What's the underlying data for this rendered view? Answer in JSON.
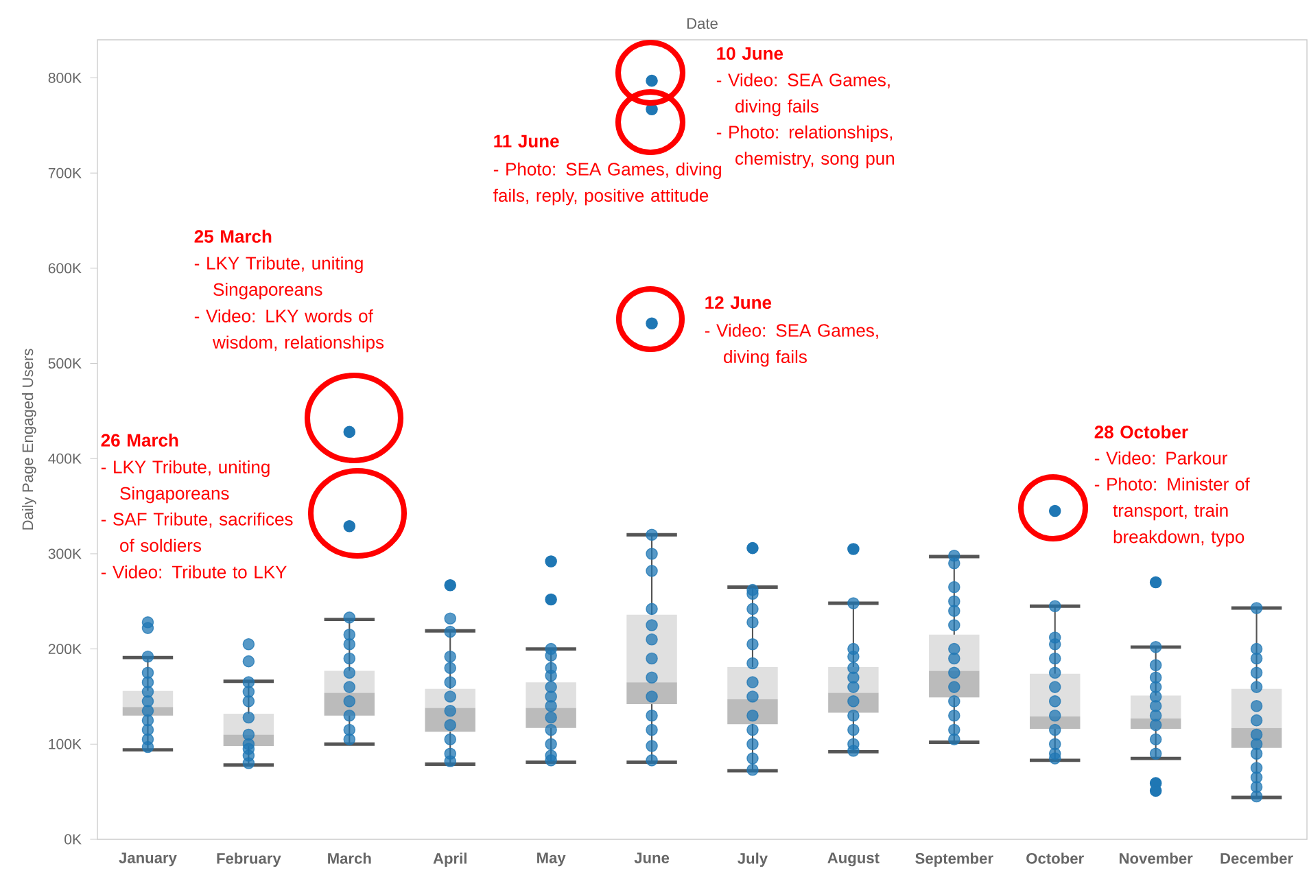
{
  "chart_data": {
    "type": "box",
    "xlabel": "Date",
    "ylabel": "Daily Page Engaged Users",
    "categories": [
      "January",
      "February",
      "March",
      "April",
      "May",
      "June",
      "July",
      "August",
      "September",
      "October",
      "November",
      "December"
    ],
    "ylim": [
      0,
      840
    ],
    "yticks": [
      {
        "value": 0,
        "label": "0K"
      },
      {
        "value": 100,
        "label": "100K"
      },
      {
        "value": 200,
        "label": "200K"
      },
      {
        "value": 300,
        "label": "300K"
      },
      {
        "value": 400,
        "label": "400K"
      },
      {
        "value": 500,
        "label": "500K"
      },
      {
        "value": 600,
        "label": "600K"
      },
      {
        "value": 700,
        "label": "700K"
      },
      {
        "value": 800,
        "label": "800K"
      }
    ],
    "boxes": [
      {
        "low": 94,
        "q1": 130,
        "median": 139,
        "q3": 156,
        "high": 191
      },
      {
        "low": 78,
        "q1": 98,
        "median": 110,
        "q3": 132,
        "high": 166
      },
      {
        "low": 100,
        "q1": 130,
        "median": 154,
        "q3": 177,
        "high": 231,
        "outliers": [
          428,
          329
        ]
      },
      {
        "low": 79,
        "q1": 113,
        "median": 138,
        "q3": 158,
        "high": 219,
        "outliers": [
          267
        ]
      },
      {
        "low": 81,
        "q1": 117,
        "median": 138,
        "q3": 165,
        "high": 200,
        "outliers": [
          292,
          252
        ]
      },
      {
        "low": 81,
        "q1": 142,
        "median": 165,
        "q3": 236,
        "high": 320,
        "outliers": [
          797,
          767,
          542
        ]
      },
      {
        "low": 72,
        "q1": 121,
        "median": 147,
        "q3": 181,
        "high": 265,
        "outliers": [
          306
        ]
      },
      {
        "low": 92,
        "q1": 133,
        "median": 154,
        "q3": 181,
        "high": 248,
        "outliers": [
          305
        ]
      },
      {
        "low": 102,
        "q1": 149,
        "median": 177,
        "q3": 215,
        "high": 297
      },
      {
        "low": 83,
        "q1": 116,
        "median": 129,
        "q3": 174,
        "high": 245,
        "outliers": [
          345
        ]
      },
      {
        "low": 85,
        "q1": 116,
        "median": 127,
        "q3": 151,
        "high": 202,
        "outliers": [
          270,
          59,
          51
        ]
      },
      {
        "low": 44,
        "q1": 96,
        "median": 117,
        "q3": 158,
        "high": 243
      }
    ],
    "series": [
      {
        "type": "scatter",
        "color": "#1f77b4",
        "marker": "circle",
        "x": [
          "January",
          "January",
          "January",
          "January",
          "January",
          "January",
          "January",
          "January",
          "January",
          "January",
          "January",
          "January",
          "February",
          "February",
          "February",
          "February",
          "February",
          "February",
          "February",
          "February",
          "February",
          "February",
          "February",
          "March",
          "March",
          "March",
          "March",
          "March",
          "March",
          "March",
          "March",
          "March",
          "March",
          "April",
          "April",
          "April",
          "April",
          "April",
          "April",
          "April",
          "April",
          "April",
          "April",
          "April",
          "May",
          "May",
          "May",
          "May",
          "May",
          "May",
          "May",
          "May",
          "May",
          "May",
          "May",
          "May",
          "June",
          "June",
          "June",
          "June",
          "June",
          "June",
          "June",
          "June",
          "June",
          "June",
          "June",
          "June",
          "June",
          "July",
          "July",
          "July",
          "July",
          "July",
          "July",
          "July",
          "July",
          "July",
          "July",
          "July",
          "July",
          "July",
          "August",
          "August",
          "August",
          "August",
          "August",
          "August",
          "August",
          "August",
          "August",
          "August",
          "August",
          "September",
          "September",
          "September",
          "September",
          "September",
          "September",
          "September",
          "September",
          "September",
          "September",
          "September",
          "September",
          "September",
          "September",
          "October",
          "October",
          "October",
          "October",
          "October",
          "October",
          "October",
          "October",
          "October",
          "October",
          "October",
          "October",
          "November",
          "November",
          "November",
          "November",
          "November",
          "November",
          "November",
          "November",
          "November",
          "November",
          "December",
          "December",
          "December",
          "December",
          "December",
          "December",
          "December",
          "December",
          "December",
          "December",
          "December",
          "December",
          "December",
          "December"
        ],
        "values": [
          228,
          222,
          192,
          175,
          165,
          155,
          145,
          135,
          125,
          115,
          105,
          97,
          205,
          187,
          165,
          155,
          145,
          128,
          110,
          100,
          95,
          88,
          80,
          233,
          215,
          205,
          190,
          175,
          160,
          145,
          130,
          115,
          105,
          232,
          218,
          192,
          180,
          165,
          150,
          135,
          120,
          105,
          90,
          82,
          200,
          193,
          180,
          172,
          160,
          150,
          140,
          128,
          115,
          100,
          88,
          83,
          320,
          300,
          282,
          242,
          225,
          210,
          190,
          170,
          150,
          130,
          115,
          98,
          83,
          262,
          258,
          242,
          228,
          205,
          185,
          165,
          150,
          130,
          115,
          100,
          85,
          73,
          248,
          200,
          192,
          180,
          170,
          160,
          145,
          130,
          115,
          100,
          93,
          298,
          290,
          265,
          250,
          240,
          225,
          200,
          190,
          175,
          160,
          145,
          130,
          115,
          105,
          245,
          212,
          205,
          190,
          175,
          160,
          145,
          130,
          115,
          100,
          90,
          85,
          202,
          183,
          170,
          160,
          150,
          140,
          130,
          120,
          105,
          90,
          243,
          200,
          190,
          175,
          160,
          140,
          125,
          110,
          100,
          90,
          75,
          65,
          55,
          45
        ]
      }
    ],
    "annotations": [
      "10 June",
      "- Video: SEA Games, diving fails",
      "- Photo: relationships, chemistry, song pun",
      "11 June",
      "- Photo: SEA Games, diving fails, reply, positive attitude",
      "12 June",
      "- Video: SEA Games, diving fails",
      "25 March",
      "- LKY Tribute, uniting Singaporeans",
      "- Video: LKY words of wisdom, relationships",
      "26 March",
      "- LKY Tribute, uniting Singaporeans",
      "- SAF Tribute, sacrifices of soldiers",
      "- Video: Tribute to LKY",
      "28 October",
      "- Video: Parkour",
      "- Photo: Minister of transport, train breakdown, typo"
    ]
  }
}
